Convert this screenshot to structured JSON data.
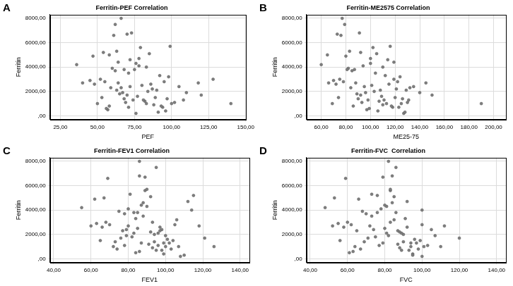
{
  "chart_data": [
    {
      "type": "scatter",
      "label": "A",
      "title": "Ferritin-PEF Correlation",
      "x_label": "PEF",
      "y_label": "Ferritin",
      "color": "#7f7f7f",
      "grid": true,
      "xlim": [
        18,
        150
      ],
      "ylim": [
        -300,
        8300
      ],
      "xticks": [
        {
          "value": 25,
          "label": "25,00"
        },
        {
          "value": 50,
          "label": "50,00"
        },
        {
          "value": 75,
          "label": "75,00"
        },
        {
          "value": 100,
          "label": "100,00"
        },
        {
          "value": 125,
          "label": "125,00"
        },
        {
          "value": 150,
          "label": "150,00"
        }
      ],
      "yticks": [
        {
          "value": 0,
          "label": ",00"
        },
        {
          "value": 2000,
          "label": "2000,00"
        },
        {
          "value": 4000,
          "label": "4000,00"
        },
        {
          "value": 6000,
          "label": "6000,00"
        },
        {
          "value": 8000,
          "label": "8000,00"
        }
      ],
      "x": [
        36,
        40,
        45,
        48,
        52,
        55,
        50,
        53,
        58,
        47,
        60,
        62,
        64,
        66,
        68,
        70,
        72,
        61,
        63,
        58,
        65,
        69,
        57,
        56,
        75,
        78,
        80,
        74,
        71,
        67,
        76,
        73,
        62,
        79,
        85,
        82,
        88,
        84,
        90,
        92,
        86,
        94,
        96,
        83,
        72,
        68,
        77,
        81,
        93,
        89,
        95,
        98,
        99,
        66,
        70,
        64,
        87,
        100,
        76,
        91,
        102,
        105,
        78,
        110,
        97,
        71,
        59,
        54,
        118,
        120,
        128,
        140,
        108,
        63,
        83
      ],
      "values": [
        4200,
        2700,
        2900,
        2600,
        3000,
        2800,
        1000,
        1500,
        5000,
        4900,
        3900,
        3700,
        2700,
        2300,
        1400,
        1700,
        2400,
        6600,
        5300,
        800,
        1800,
        1100,
        500,
        600,
        3800,
        4100,
        2500,
        1300,
        3500,
        1900,
        4300,
        6800,
        7500,
        5600,
        5100,
        1200,
        900,
        2000,
        2100,
        3300,
        2600,
        700,
        400,
        1000,
        4600,
        3800,
        1600,
        1300,
        800,
        1500,
        2800,
        3200,
        5700,
        8000,
        6700,
        4400,
        2200,
        1000,
        200,
        300,
        1100,
        2400,
        4700,
        1900,
        1400,
        700,
        2300,
        5200,
        2700,
        1700,
        3000,
        1000,
        1300,
        2100,
        4000
      ]
    },
    {
      "type": "scatter",
      "label": "B",
      "title": "Ferritin-ME2575 Correlation",
      "x_label": "ME25-75",
      "y_label": "Ferritin",
      "color": "#7f7f7f",
      "grid": true,
      "xlim": [
        48,
        210
      ],
      "ylim": [
        -300,
        8300
      ],
      "xticks": [
        {
          "value": 60,
          "label": "60,00"
        },
        {
          "value": 80,
          "label": "80,00"
        },
        {
          "value": 100,
          "label": "100,00"
        },
        {
          "value": 120,
          "label": "120,00"
        },
        {
          "value": 140,
          "label": "140,00"
        },
        {
          "value": 160,
          "label": "160,00"
        },
        {
          "value": 180,
          "label": "180,00"
        },
        {
          "value": 200,
          "label": "200,00"
        }
      ],
      "yticks": [
        {
          "value": 0,
          "label": ",00"
        },
        {
          "value": 2000,
          "label": "2000,00"
        },
        {
          "value": 4000,
          "label": "4000,00"
        },
        {
          "value": 6000,
          "label": "6000,00"
        },
        {
          "value": 8000,
          "label": "8000,00"
        }
      ],
      "x": [
        60,
        66,
        70,
        72,
        75,
        78,
        69,
        74,
        65,
        80,
        82,
        85,
        88,
        84,
        90,
        92,
        95,
        76,
        83,
        86,
        89,
        93,
        97,
        99,
        87,
        94,
        101,
        98,
        104,
        96,
        100,
        91,
        79,
        102,
        105,
        107,
        110,
        103,
        108,
        112,
        115,
        118,
        106,
        113,
        114,
        81,
        109,
        111,
        117,
        120,
        122,
        124,
        116,
        77,
        73,
        119,
        121,
        125,
        127,
        128,
        130,
        135,
        100,
        140,
        126,
        123,
        132,
        92,
        145,
        150,
        119,
        190,
        131,
        129,
        110
      ],
      "values": [
        4200,
        2700,
        2900,
        2600,
        3000,
        2800,
        1000,
        1500,
        5000,
        4900,
        3900,
        3700,
        2700,
        2300,
        1400,
        1700,
        2400,
        6600,
        5300,
        800,
        1800,
        1100,
        500,
        600,
        3800,
        4100,
        2500,
        1300,
        3500,
        1900,
        4300,
        6800,
        7500,
        5600,
        5100,
        1200,
        900,
        2000,
        2100,
        3300,
        2600,
        700,
        400,
        1000,
        4600,
        3800,
        1600,
        1300,
        800,
        1500,
        2800,
        3200,
        5700,
        8000,
        6700,
        4400,
        2200,
        1000,
        200,
        300,
        1100,
        2400,
        4700,
        1900,
        1400,
        700,
        2300,
        5200,
        2700,
        1700,
        3000,
        1000,
        1300,
        2100,
        4000
      ]
    },
    {
      "type": "scatter",
      "label": "C",
      "title": "Ferritin-FEV1 Correlation",
      "x_label": "FEV1",
      "y_label": "Ferritin",
      "color": "#7f7f7f",
      "grid": true,
      "xlim": [
        38,
        145
      ],
      "ylim": [
        -300,
        8300
      ],
      "xticks": [
        {
          "value": 40,
          "label": "40,00"
        },
        {
          "value": 60,
          "label": "60,00"
        },
        {
          "value": 80,
          "label": "80,00"
        },
        {
          "value": 100,
          "label": "100,00"
        },
        {
          "value": 120,
          "label": "120,00"
        },
        {
          "value": 140,
          "label": "140,00"
        }
      ],
      "yticks": [
        {
          "value": 0,
          "label": ",00"
        },
        {
          "value": 2000,
          "label": "2000,00"
        },
        {
          "value": 4000,
          "label": "4000,00"
        },
        {
          "value": 6000,
          "label": "6000,00"
        },
        {
          "value": 8000,
          "label": "8000,00"
        }
      ],
      "x": [
        55,
        60,
        63,
        66,
        68,
        70,
        72,
        65,
        67,
        62,
        75,
        78,
        80,
        77,
        73,
        76,
        79,
        69,
        81,
        74,
        82,
        78,
        84,
        86,
        83,
        80,
        85,
        87,
        88,
        79,
        90,
        86,
        95,
        89,
        92,
        91,
        93,
        94,
        96,
        84,
        97,
        98,
        99,
        100,
        88,
        85,
        101,
        102,
        103,
        104,
        105,
        106,
        90,
        86,
        89,
        87,
        92,
        107,
        108,
        110,
        96,
        98,
        112,
        100,
        94,
        95,
        97,
        115,
        118,
        121,
        93,
        126,
        99,
        83,
        114
      ],
      "values": [
        4200,
        2700,
        2900,
        2600,
        3000,
        2800,
        1000,
        1500,
        5000,
        4900,
        3900,
        3700,
        2700,
        2300,
        1400,
        1700,
        2400,
        6600,
        5300,
        800,
        1800,
        1100,
        500,
        600,
        3800,
        4100,
        2500,
        1300,
        3500,
        1900,
        4300,
        6800,
        7500,
        5600,
        5100,
        1200,
        900,
        2000,
        2100,
        3300,
        2600,
        700,
        400,
        1000,
        4600,
        3800,
        1600,
        1300,
        800,
        1500,
        2800,
        3200,
        5700,
        8000,
        6700,
        4400,
        2200,
        1000,
        200,
        300,
        1100,
        2400,
        4700,
        1900,
        1400,
        700,
        2300,
        5200,
        2700,
        1700,
        3000,
        1000,
        1300,
        2100,
        4000
      ]
    },
    {
      "type": "scatter",
      "label": "D",
      "title": "Ferritin-FVC  Correlation",
      "x_label": "FVC",
      "y_label": "Ferritin",
      "color": "#7f7f7f",
      "grid": true,
      "xlim": [
        38,
        145
      ],
      "ylim": [
        -300,
        8300
      ],
      "xticks": [
        {
          "value": 40,
          "label": "40,00"
        },
        {
          "value": 60,
          "label": "60,00"
        },
        {
          "value": 80,
          "label": "80,00"
        },
        {
          "value": 100,
          "label": "100,00"
        },
        {
          "value": 120,
          "label": "120,00"
        },
        {
          "value": 140,
          "label": "140,00"
        }
      ],
      "yticks": [
        {
          "value": 0,
          "label": ",00"
        },
        {
          "value": 2000,
          "label": "2000,00"
        },
        {
          "value": 4000,
          "label": "4000,00"
        },
        {
          "value": 6000,
          "label": "6000,00"
        },
        {
          "value": 8000,
          "label": "8000,00"
        }
      ],
      "x": [
        48,
        52,
        55,
        58,
        60,
        62,
        64,
        56,
        53,
        66,
        68,
        70,
        72,
        65,
        69,
        71,
        74,
        59,
        73,
        67,
        75,
        77,
        61,
        63,
        76,
        78,
        80,
        79,
        73,
        82,
        81,
        84,
        86,
        83,
        85,
        87,
        88,
        90,
        89,
        91,
        92,
        93,
        95,
        94,
        84,
        86,
        96,
        97,
        98,
        99,
        100,
        85,
        83,
        82,
        79,
        80,
        88,
        101,
        100,
        95,
        103,
        105,
        92,
        107,
        90,
        89,
        87,
        76,
        112,
        120,
        83,
        110,
        94,
        81,
        100
      ],
      "values": [
        4200,
        2700,
        2900,
        2600,
        3000,
        2800,
        1000,
        1500,
        5000,
        4900,
        3900,
        3700,
        2700,
        2300,
        1400,
        1700,
        2400,
        6600,
        5300,
        800,
        1800,
        1100,
        500,
        600,
        3800,
        4100,
        2500,
        1300,
        3500,
        1900,
        4300,
        6800,
        7500,
        5600,
        5100,
        1200,
        900,
        2000,
        2100,
        3300,
        2600,
        700,
        400,
        1000,
        4600,
        3800,
        1600,
        1300,
        800,
        1500,
        2800,
        3200,
        5700,
        8000,
        6700,
        4400,
        2200,
        1000,
        200,
        300,
        1100,
        2400,
        4700,
        1900,
        1400,
        700,
        2300,
        5200,
        2700,
        1700,
        3000,
        1000,
        1300,
        2100,
        4000
      ]
    }
  ]
}
